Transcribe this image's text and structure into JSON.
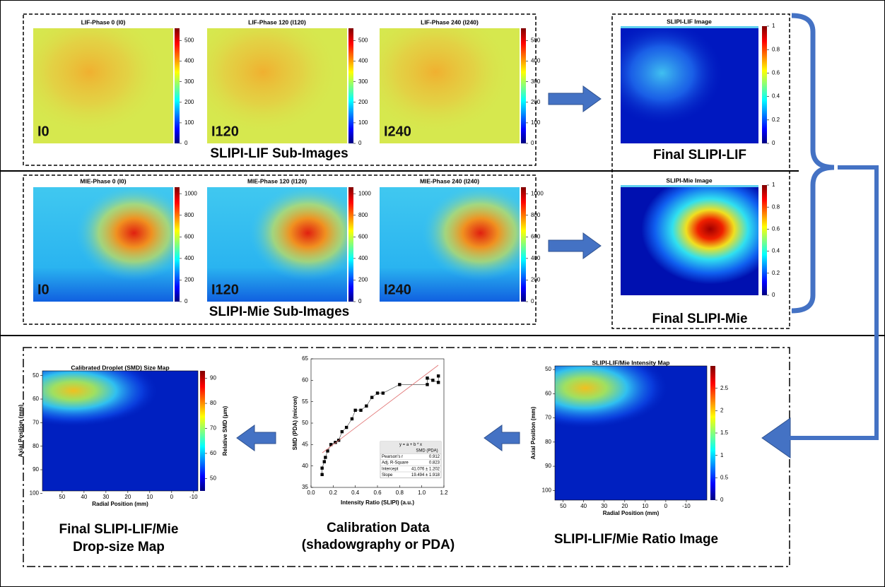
{
  "lif_row": {
    "images": [
      {
        "title": "LIF-Phase 0 (I0)",
        "label": "I0"
      },
      {
        "title": "LIF-Phase 120 (I120)",
        "label": "I120"
      },
      {
        "title": "LIF-Phase 240 (I240)",
        "label": "I240"
      }
    ],
    "colorbar": {
      "ticks": [
        0,
        100,
        200,
        300,
        400,
        500
      ],
      "range": [
        0,
        560
      ]
    },
    "caption": "SLIPI-LIF Sub-Images"
  },
  "mie_row": {
    "images": [
      {
        "title": "MIE-Phase 0 (I0)",
        "label": "I0"
      },
      {
        "title": "MIE-Phase 120 (I120)",
        "label": "I120"
      },
      {
        "title": "MIE-Phase 240 (I240)",
        "label": "I240"
      }
    ],
    "colorbar": {
      "ticks": [
        0,
        200,
        400,
        600,
        800,
        1000
      ],
      "range": [
        0,
        1060
      ]
    },
    "caption": "SLIPI-Mie Sub-Images"
  },
  "final_lif": {
    "title": "SLIPI-LIF Image",
    "colorbar": {
      "ticks": [
        0,
        0.2,
        0.4,
        0.6,
        0.8,
        1
      ],
      "range": [
        0,
        1
      ]
    },
    "caption": "Final SLIPI-LIF"
  },
  "final_mie": {
    "title": "SLIPI-Mie Image",
    "colorbar": {
      "ticks": [
        0,
        0.2,
        0.4,
        0.6,
        0.8,
        1
      ],
      "range": [
        0,
        1
      ]
    },
    "caption": "Final SLIPI-Mie"
  },
  "drop_size_map": {
    "title": "Calibrated Droplet (SMD) Size Map",
    "y_label": "Axial Position (mm)",
    "x_label": "Radial Position (mm)",
    "ylim": [
      48,
      99
    ],
    "yticks": [
      50,
      60,
      70,
      80,
      90,
      100
    ],
    "xlim": [
      59,
      -12
    ],
    "xticks": [
      50,
      40,
      30,
      20,
      10,
      0,
      -10
    ],
    "colorbar": {
      "label": "Relative SMD (μm)",
      "ticks": [
        50,
        60,
        70,
        80,
        90
      ],
      "range": [
        45,
        93
      ]
    },
    "caption": [
      "Final SLIPI-LIF/Mie",
      "Drop-size Map"
    ]
  },
  "calibration": {
    "x_label": "Intensity Ratio (SLIPI) (a.u.)",
    "y_label": "SMD (PDA) (micron)",
    "xlim": [
      0,
      1.2
    ],
    "xticks": [
      {
        "value": 0,
        "label": "0.0"
      },
      0.2,
      0.4,
      0.6,
      0.8,
      {
        "value": 1,
        "label": "1.0"
      },
      1.2
    ],
    "ylim": [
      35,
      65
    ],
    "yticks": [
      35,
      40,
      45,
      50,
      55,
      60,
      65
    ],
    "points": {
      "x": [
        0.1,
        0.1,
        0.12,
        0.13,
        0.15,
        0.18,
        0.22,
        0.25,
        0.28,
        0.32,
        0.37,
        0.4,
        0.45,
        0.5,
        0.55,
        0.6,
        0.65,
        0.8,
        1.05,
        1.05,
        1.1,
        1.15,
        1.15
      ],
      "y": [
        38,
        39.5,
        41,
        42,
        43.5,
        45,
        45.5,
        46,
        48,
        49,
        51,
        53,
        53,
        54,
        56,
        57,
        57,
        59,
        59,
        60.5,
        60,
        59.5,
        61
      ]
    },
    "table": {
      "equation": "y = a + b * x",
      "column": "SMD (PDA)",
      "rows": [
        [
          "Pearson's r",
          0.912
        ],
        [
          "Adj. R-Square",
          0.823
        ],
        [
          "Intercept",
          "41.076 ± 1.202"
        ],
        [
          "Slope",
          "19.494 ± 1.918"
        ]
      ]
    },
    "caption": [
      "Calibration Data",
      "(shadowgraphy or PDA)"
    ]
  },
  "ratio_map": {
    "title": "SLIPI-LIF/Mie Intensity Map",
    "y_label": "Axial Position (mm)",
    "x_label": "Radial Position (mm)",
    "ylim": [
      48.5,
      104
    ],
    "yticks": [
      50,
      60,
      70,
      80,
      90,
      100
    ],
    "xlim": [
      54,
      -20
    ],
    "xticks": [
      50,
      40,
      30,
      20,
      10,
      0,
      -10
    ],
    "colorbar": {
      "ticks": [
        0,
        0.5,
        1,
        1.5,
        2,
        2.5
      ],
      "range": [
        0,
        3
      ]
    },
    "caption": "SLIPI-LIF/Mie Ratio Image"
  }
}
